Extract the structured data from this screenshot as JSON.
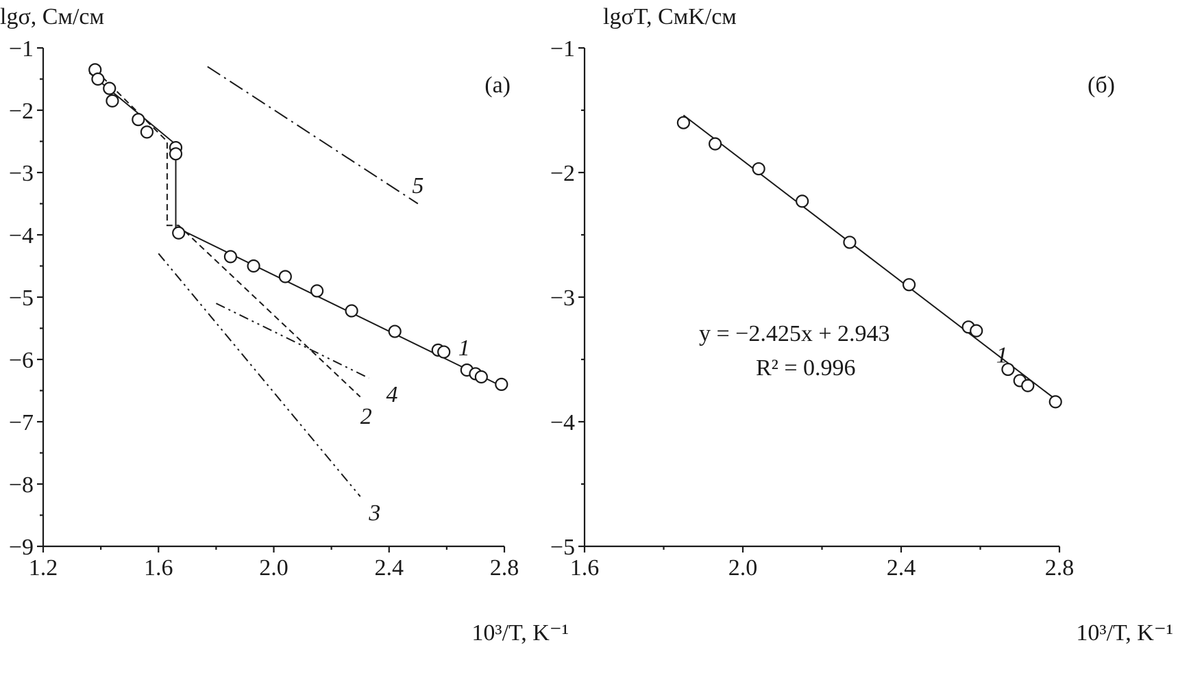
{
  "chart_data": [
    {
      "type": "line",
      "panel_label": "(а)",
      "ylabel": "lgσ, См/см",
      "xlabel": "10³/T, K⁻¹",
      "xlim": [
        1.2,
        2.8
      ],
      "ylim": [
        -9,
        -1
      ],
      "xticks": [
        "1.2",
        "1.6",
        "2.0",
        "2.4",
        "2.8"
      ],
      "yticks": [
        "−1",
        "−2",
        "−3",
        "−4",
        "−5",
        "−6",
        "−7",
        "−8",
        "−9"
      ],
      "points": {
        "x": [
          1.38,
          1.39,
          1.43,
          1.44,
          1.53,
          1.56,
          1.66,
          1.66,
          1.67,
          1.85,
          1.93,
          2.04,
          2.15,
          2.27,
          2.42,
          2.57,
          2.59,
          2.67,
          2.7,
          2.72,
          2.79
        ],
        "y": [
          -1.35,
          -1.5,
          -1.65,
          -1.85,
          -2.15,
          -2.35,
          -2.6,
          -2.7,
          -3.97,
          -4.35,
          -4.5,
          -4.67,
          -4.9,
          -5.22,
          -5.55,
          -5.85,
          -5.88,
          -6.17,
          -6.23,
          -6.28,
          -6.4
        ]
      },
      "series": [
        {
          "name": "1",
          "style": "solid",
          "x": [
            1.36,
            1.66,
            1.66,
            1.67,
            2.8
          ],
          "y": [
            -1.4,
            -2.55,
            -3.9,
            -3.9,
            -6.45
          ]
        },
        {
          "name": "2",
          "style": "dashed",
          "x": [
            1.38,
            1.63,
            1.63,
            1.67,
            2.3
          ],
          "y": [
            -1.35,
            -2.5,
            -3.85,
            -3.85,
            -6.6
          ]
        },
        {
          "name": "3",
          "style": "dash-dot-dot",
          "x": [
            1.6,
            2.3
          ],
          "y": [
            -4.3,
            -8.2
          ]
        },
        {
          "name": "4",
          "style": "dash-dot-dot",
          "x": [
            1.8,
            2.33
          ],
          "y": [
            -5.1,
            -6.3
          ]
        },
        {
          "name": "5",
          "style": "dash-dot",
          "x": [
            1.77,
            2.5
          ],
          "y": [
            -1.3,
            -3.5
          ]
        }
      ],
      "curve_labels": [
        {
          "text": "1",
          "x": 2.64,
          "y": -5.8
        },
        {
          "text": "2",
          "x": 2.3,
          "y": -6.9
        },
        {
          "text": "3",
          "x": 2.33,
          "y": -8.45
        },
        {
          "text": "4",
          "x": 2.39,
          "y": -6.55
        },
        {
          "text": "5",
          "x": 2.48,
          "y": -3.2
        }
      ]
    },
    {
      "type": "scatter",
      "panel_label": "(б)",
      "ylabel": "lgσT, СмK/см",
      "xlabel": "10³/T, K⁻¹",
      "xlim": [
        1.6,
        2.8
      ],
      "ylim": [
        -5,
        -1
      ],
      "xticks": [
        "1.6",
        "2.0",
        "2.4",
        "2.8"
      ],
      "yticks": [
        "−1",
        "−2",
        "−3",
        "−4",
        "−5"
      ],
      "points": {
        "x": [
          1.85,
          1.93,
          2.04,
          2.15,
          2.27,
          2.42,
          2.57,
          2.59,
          2.67,
          2.7,
          2.72,
          2.79
        ],
        "y": [
          -1.6,
          -1.77,
          -1.97,
          -2.23,
          -2.56,
          -2.9,
          -3.24,
          -3.27,
          -3.58,
          -3.67,
          -3.71,
          -3.84
        ]
      },
      "series": [
        {
          "name": "1",
          "style": "solid",
          "x": [
            1.85,
            2.79
          ],
          "y": [
            -1.54,
            -3.82
          ]
        }
      ],
      "curve_labels": [
        {
          "text": "1",
          "x": 2.64,
          "y": -3.46
        }
      ],
      "equation": "y = −2.425x + 2.943",
      "r_squared": "R² = 0.996"
    }
  ]
}
